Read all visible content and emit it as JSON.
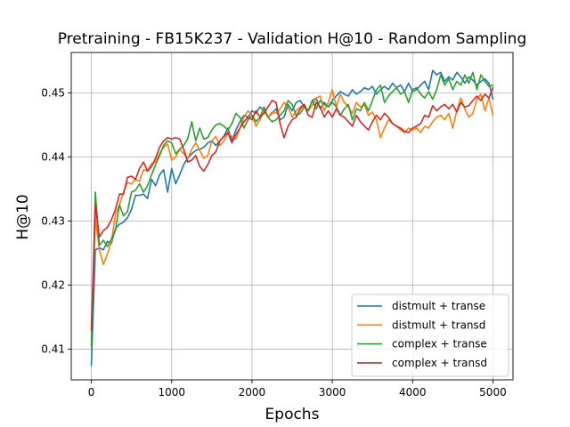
{
  "chart_data": {
    "type": "line",
    "title": "Pretraining - FB15K237 - Validation H@10 - Random Sampling",
    "xlabel": "Epochs",
    "ylabel": "H@10",
    "xlim": [
      -250,
      5250
    ],
    "ylim": [
      0.4052,
      0.4563
    ],
    "xticks": [
      0,
      1000,
      2000,
      3000,
      4000,
      5000
    ],
    "yticks": [
      0.41,
      0.42,
      0.43,
      0.44,
      0.45
    ],
    "ytick_labels": [
      "0.41",
      "0.42",
      "0.43",
      "0.44",
      "0.45"
    ],
    "grid": true,
    "legend_position": "lower-right",
    "x": [
      0,
      50,
      100,
      150,
      200,
      250,
      300,
      350,
      400,
      450,
      500,
      550,
      600,
      650,
      700,
      750,
      800,
      850,
      900,
      950,
      1000,
      1050,
      1100,
      1150,
      1200,
      1250,
      1300,
      1350,
      1400,
      1450,
      1500,
      1550,
      1600,
      1650,
      1700,
      1750,
      1800,
      1850,
      1900,
      1950,
      2000,
      2050,
      2100,
      2150,
      2200,
      2250,
      2300,
      2350,
      2400,
      2450,
      2500,
      2550,
      2600,
      2650,
      2700,
      2750,
      2800,
      2850,
      2900,
      2950,
      3000,
      3050,
      3100,
      3150,
      3200,
      3250,
      3300,
      3350,
      3400,
      3450,
      3500,
      3550,
      3600,
      3650,
      3700,
      3750,
      3800,
      3850,
      3900,
      3950,
      4000,
      4050,
      4100,
      4150,
      4200,
      4250,
      4300,
      4350,
      4400,
      4450,
      4500,
      4550,
      4600,
      4650,
      4700,
      4750,
      4800,
      4850,
      4900,
      4950,
      5000
    ],
    "series": [
      {
        "name": "distmult + transe",
        "color": "#1f77b4",
        "values": [
          0.4075,
          0.4255,
          0.4258,
          0.4255,
          0.4268,
          0.4265,
          0.4288,
          0.4295,
          0.4298,
          0.4305,
          0.4318,
          0.434,
          0.434,
          0.4342,
          0.4335,
          0.4365,
          0.4355,
          0.4372,
          0.438,
          0.4345,
          0.4382,
          0.4358,
          0.4372,
          0.4388,
          0.4398,
          0.4405,
          0.441,
          0.4412,
          0.4415,
          0.4422,
          0.4425,
          0.4418,
          0.4425,
          0.4432,
          0.4445,
          0.4425,
          0.4442,
          0.4455,
          0.4465,
          0.4462,
          0.4472,
          0.4468,
          0.4478,
          0.4472,
          0.4462,
          0.4468,
          0.4475,
          0.4458,
          0.4462,
          0.4482,
          0.4472,
          0.4485,
          0.4488,
          0.4478,
          0.4472,
          0.4488,
          0.4492,
          0.4475,
          0.4485,
          0.4478,
          0.4488,
          0.4495,
          0.4502,
          0.4498,
          0.4495,
          0.4505,
          0.4498,
          0.4502,
          0.4508,
          0.4505,
          0.451,
          0.4498,
          0.4505,
          0.451,
          0.4505,
          0.4515,
          0.4508,
          0.4512,
          0.4502,
          0.4515,
          0.4502,
          0.4505,
          0.4512,
          0.4518,
          0.4505,
          0.4535,
          0.4528,
          0.4532,
          0.4518,
          0.4525,
          0.452,
          0.4532,
          0.4525,
          0.4515,
          0.4525,
          0.452,
          0.4512,
          0.4518,
          0.4522,
          0.4515,
          0.449
        ]
      },
      {
        "name": "distmult + transd",
        "color": "#ff7f0e",
        "values": [
          0.4128,
          0.4305,
          0.4255,
          0.4232,
          0.4248,
          0.4268,
          0.431,
          0.4325,
          0.4345,
          0.436,
          0.4358,
          0.4365,
          0.4362,
          0.438,
          0.4378,
          0.439,
          0.4392,
          0.4405,
          0.4415,
          0.442,
          0.4395,
          0.44,
          0.4412,
          0.4405,
          0.4398,
          0.4412,
          0.4422,
          0.441,
          0.4398,
          0.4402,
          0.4425,
          0.4432,
          0.4418,
          0.4425,
          0.4438,
          0.4432,
          0.4428,
          0.4445,
          0.4462,
          0.4472,
          0.4465,
          0.4448,
          0.4458,
          0.4475,
          0.4462,
          0.447,
          0.4468,
          0.4475,
          0.4485,
          0.4478,
          0.4462,
          0.4472,
          0.4478,
          0.4482,
          0.4472,
          0.448,
          0.4492,
          0.4495,
          0.4472,
          0.4485,
          0.4505,
          0.4478,
          0.4498,
          0.4485,
          0.4478,
          0.4468,
          0.4485,
          0.4478,
          0.4482,
          0.4465,
          0.447,
          0.4458,
          0.443,
          0.4445,
          0.4458,
          0.4452,
          0.4448,
          0.4442,
          0.4438,
          0.4445,
          0.4442,
          0.4445,
          0.4438,
          0.4448,
          0.4445,
          0.4455,
          0.4462,
          0.4465,
          0.4458,
          0.4468,
          0.4445,
          0.4472,
          0.4492,
          0.4475,
          0.4462,
          0.4468,
          0.449,
          0.4498,
          0.4472,
          0.4492,
          0.4465
        ]
      },
      {
        "name": "complex + transe",
        "color": "#2ca02c",
        "values": [
          0.4105,
          0.4345,
          0.4262,
          0.427,
          0.426,
          0.4272,
          0.4285,
          0.4325,
          0.4308,
          0.4315,
          0.4345,
          0.4348,
          0.4358,
          0.4345,
          0.4355,
          0.4372,
          0.4388,
          0.4402,
          0.4418,
          0.4425,
          0.4422,
          0.4405,
          0.4412,
          0.4418,
          0.4428,
          0.4455,
          0.4425,
          0.4445,
          0.4428,
          0.443,
          0.4442,
          0.445,
          0.4452,
          0.4448,
          0.4442,
          0.4452,
          0.4468,
          0.4462,
          0.4445,
          0.4458,
          0.4465,
          0.4455,
          0.4462,
          0.4478,
          0.4462,
          0.4455,
          0.4458,
          0.4465,
          0.4472,
          0.4488,
          0.4482,
          0.4465,
          0.4468,
          0.4478,
          0.4472,
          0.4488,
          0.4475,
          0.4488,
          0.4482,
          0.4478,
          0.4485,
          0.4478,
          0.4465,
          0.4475,
          0.4482,
          0.4458,
          0.4475,
          0.4472,
          0.4485,
          0.4472,
          0.4488,
          0.4505,
          0.4512,
          0.4485,
          0.4495,
          0.4502,
          0.4508,
          0.4498,
          0.4502,
          0.4485,
          0.4505,
          0.4508,
          0.4498,
          0.4492,
          0.4502,
          0.449,
          0.4505,
          0.4528,
          0.4512,
          0.4522,
          0.4505,
          0.4518,
          0.4512,
          0.4528,
          0.4515,
          0.4532,
          0.4505,
          0.4528,
          0.4518,
          0.451,
          0.4512
        ]
      },
      {
        "name": "complex + transd",
        "color": "#d62728",
        "values": [
          0.413,
          0.4325,
          0.4275,
          0.4285,
          0.429,
          0.4302,
          0.4318,
          0.4342,
          0.4342,
          0.4368,
          0.437,
          0.4365,
          0.4382,
          0.4392,
          0.4378,
          0.4385,
          0.4398,
          0.4415,
          0.4425,
          0.443,
          0.4428,
          0.443,
          0.4428,
          0.4412,
          0.4392,
          0.4395,
          0.4402,
          0.4385,
          0.4378,
          0.4388,
          0.4402,
          0.4408,
          0.4425,
          0.4432,
          0.4438,
          0.4422,
          0.4435,
          0.4445,
          0.4455,
          0.4462,
          0.4458,
          0.4472,
          0.4462,
          0.4468,
          0.4478,
          0.4488,
          0.4485,
          0.4452,
          0.443,
          0.4448,
          0.4458,
          0.4462,
          0.4475,
          0.4482,
          0.4465,
          0.4462,
          0.4485,
          0.4478,
          0.4462,
          0.4472,
          0.4462,
          0.4475,
          0.4465,
          0.4462,
          0.4455,
          0.4448,
          0.4465,
          0.4455,
          0.4448,
          0.4442,
          0.4455,
          0.4465,
          0.4458,
          0.4468,
          0.4462,
          0.4452,
          0.4448,
          0.4445,
          0.444,
          0.4438,
          0.4445,
          0.4448,
          0.4452,
          0.4465,
          0.4462,
          0.448,
          0.4472,
          0.4478,
          0.4482,
          0.4475,
          0.4482,
          0.447,
          0.4485,
          0.4478,
          0.448,
          0.4488,
          0.4495,
          0.4488,
          0.4498,
          0.4492,
          0.4508
        ]
      }
    ]
  }
}
